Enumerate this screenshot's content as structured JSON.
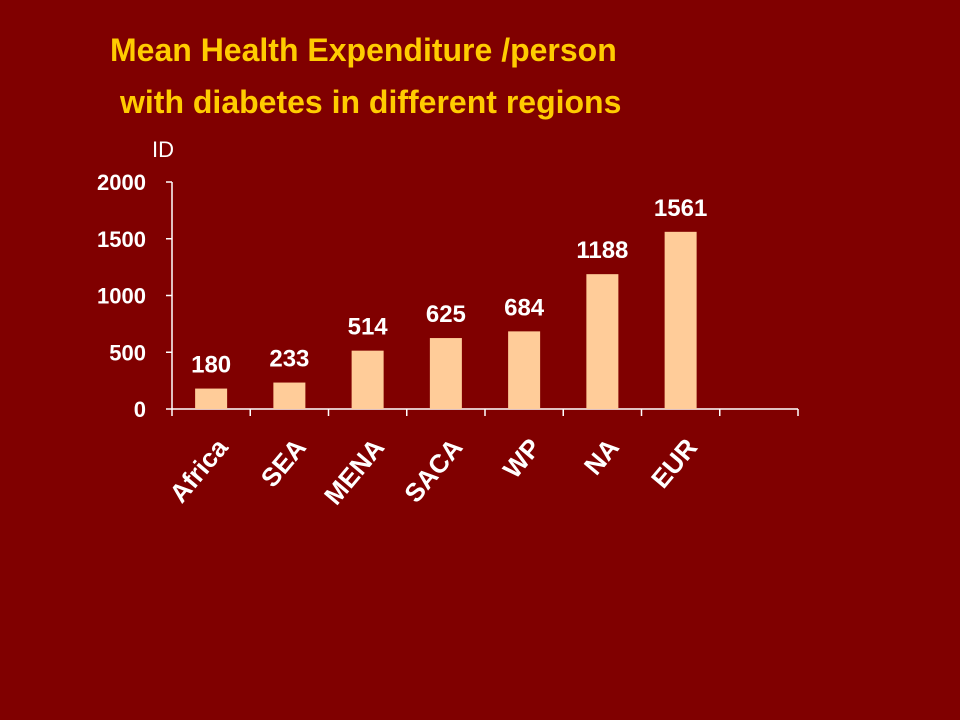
{
  "colors": {
    "background": "#800000",
    "title": "#FFCC00",
    "bar": "#FFCC99",
    "axis": "#FFFFFF",
    "text": "#FFFFFF"
  },
  "chart_data": {
    "type": "bar",
    "title_lines": [
      "Mean Health Expenditure /person",
      "with diabetes in different regions"
    ],
    "ylabel": "ID",
    "xlabel": "",
    "categories": [
      "Africa",
      "SEA",
      "MENA",
      "SACA",
      "WP",
      "NA",
      "EUR"
    ],
    "values": [
      180,
      233,
      514,
      625,
      684,
      1188,
      1561
    ],
    "ylim": [
      0,
      2000
    ],
    "yticks": [
      0,
      500,
      1000,
      1500,
      2000
    ],
    "grid": false,
    "legend": "none"
  }
}
